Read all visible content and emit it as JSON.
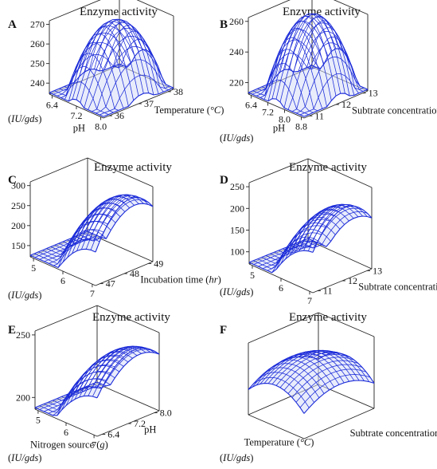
{
  "chart_data": [
    {
      "panel": "A",
      "type": "surface",
      "title": "Enzyme activity",
      "unit_label": "(IU/gds)",
      "x": {
        "label": "pH",
        "ticks": [
          "6.4",
          "7.2",
          "8.0"
        ]
      },
      "y": {
        "label": "Temperature (°C)",
        "ticks": [
          "36",
          "37",
          "38"
        ]
      },
      "z": {
        "ticks": [
          "240",
          "250",
          "260",
          "270"
        ]
      }
    },
    {
      "panel": "B",
      "type": "surface",
      "title": "Enzyme activity",
      "unit_label": "(IU/gds)",
      "x": {
        "label": "pH",
        "ticks": [
          "6.4",
          "7.2",
          "8.0",
          "8.8"
        ]
      },
      "y": {
        "label": "Subtrate concentration (g)",
        "ticks": [
          "11",
          "12",
          "13"
        ]
      },
      "z": {
        "ticks": [
          "220",
          "240",
          "260"
        ]
      }
    },
    {
      "panel": "C",
      "type": "surface",
      "title": "Enzyme activity",
      "unit_label": "(IU/gds)",
      "x": {
        "label": "",
        "ticks": [
          "5",
          "6",
          "7"
        ]
      },
      "y": {
        "label": "Incubation time (hr)",
        "ticks": [
          "47",
          "48",
          "49"
        ]
      },
      "z": {
        "ticks": [
          "150",
          "200",
          "250",
          "300"
        ]
      }
    },
    {
      "panel": "D",
      "type": "surface",
      "title": "Enzyme activity",
      "unit_label": "(IU/gds)",
      "x": {
        "label": "",
        "ticks": [
          "5",
          "6",
          "7"
        ]
      },
      "y": {
        "label": "Subtrate concentration (g)",
        "ticks": [
          "11",
          "12",
          "13"
        ]
      },
      "z": {
        "ticks": [
          "100",
          "150",
          "200",
          "250"
        ]
      }
    },
    {
      "panel": "E",
      "type": "surface",
      "title": "Enzyme activity",
      "unit_label": "(IU/gds)",
      "x": {
        "label": "Nitrogen source (g)",
        "ticks": [
          "5",
          "6",
          "7"
        ]
      },
      "y": {
        "label": "pH",
        "ticks": [
          "6.4",
          "7.2",
          "8.0"
        ]
      },
      "z": {
        "ticks": [
          "200",
          "250"
        ]
      }
    },
    {
      "panel": "F",
      "type": "surface",
      "title": "Enzyme activity",
      "unit_label": "(IU/gds)",
      "x": {
        "label": "Temperature (°C)",
        "ticks": []
      },
      "y": {
        "label": "Subtrate concentration (g)",
        "ticks": []
      },
      "z": {
        "ticks": []
      }
    }
  ]
}
